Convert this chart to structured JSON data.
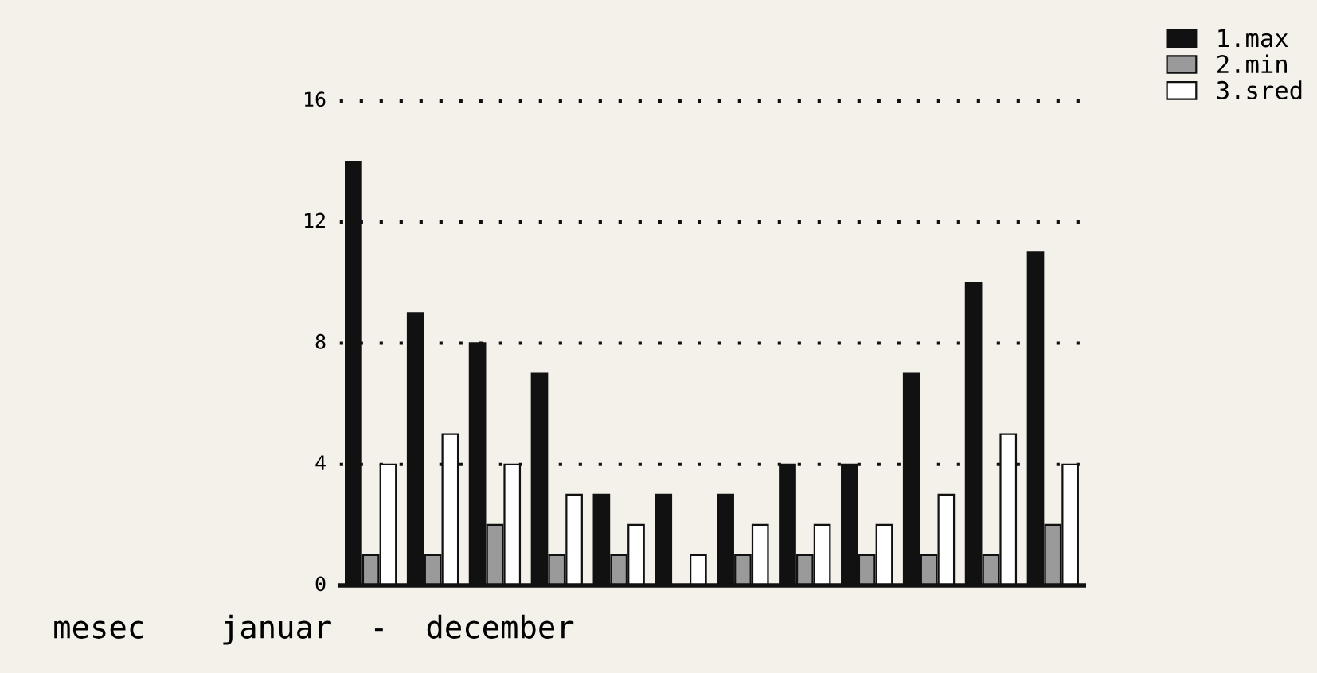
{
  "chart_data": {
    "type": "bar",
    "xlabel": "mesec    januar  -  december",
    "categories": [
      null,
      null,
      null,
      null,
      null,
      null,
      null,
      null,
      null,
      null,
      null,
      null
    ],
    "series": [
      {
        "name": "1.max",
        "color": "#111111",
        "values": [
          14,
          9,
          8,
          7,
          3,
          3,
          3,
          4,
          4,
          7,
          10,
          11
        ]
      },
      {
        "name": "2.min",
        "color": "#9a9a9a",
        "values": [
          1,
          1,
          2,
          1,
          1,
          0,
          1,
          1,
          1,
          1,
          1,
          2
        ]
      },
      {
        "name": "3.sred",
        "color": "#ffffff",
        "values": [
          4,
          5,
          4,
          3,
          2,
          1,
          2,
          2,
          2,
          3,
          5,
          4
        ]
      }
    ],
    "ylim": [
      0,
      16
    ],
    "yticks": [
      0,
      4,
      8,
      12,
      16
    ],
    "grid": "y",
    "legend": "top right"
  }
}
